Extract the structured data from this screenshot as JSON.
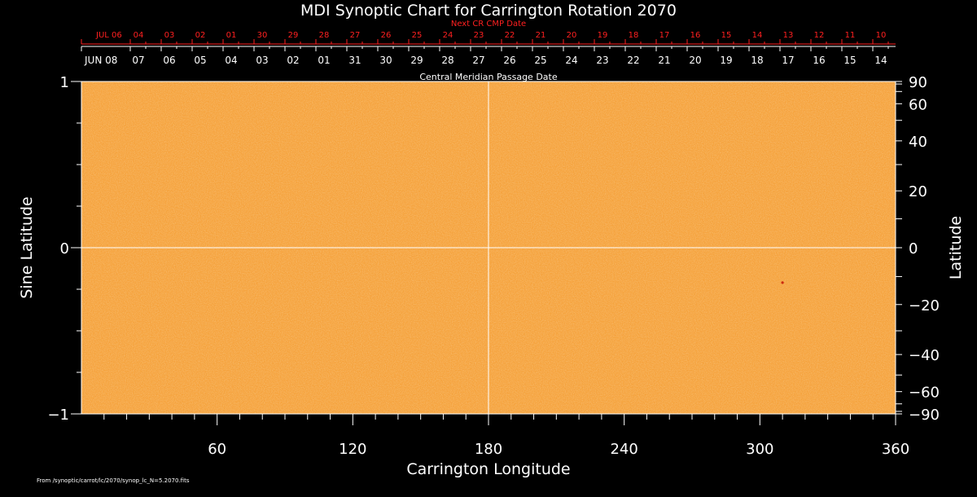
{
  "chart_data": {
    "type": "heatmap",
    "title": "MDI Synoptic Chart for Carrington Rotation 2070",
    "xlabel": "Carrington Longitude",
    "ylabel_left": "Sine Latitude",
    "ylabel_right": "Latitude",
    "xlim": [
      0,
      360
    ],
    "ylim": [
      -1,
      1
    ],
    "x_major_ticks": [
      60,
      120,
      180,
      240,
      300,
      360
    ],
    "x_minor_step": 10,
    "y_left_major_ticks": [
      -1,
      0,
      1
    ],
    "y_left_minor_step": 0.25,
    "y_right_ticks_deg": [
      90,
      60,
      40,
      20,
      0,
      -20,
      -40,
      -60,
      -90
    ],
    "top_axis_title": "Central Meridian Passage Date",
    "top_axis_labels": [
      "JUN 08",
      "07",
      "06",
      "05",
      "04",
      "03",
      "02",
      "01",
      "31",
      "30",
      "29",
      "28",
      "27",
      "26",
      "25",
      "24",
      "23",
      "22",
      "21",
      "20",
      "19",
      "18",
      "17",
      "16",
      "15",
      "14"
    ],
    "next_cr_title": "Next CR CMP Date",
    "next_cr_labels": [
      "JUL 06",
      "04",
      "03",
      "02",
      "01",
      "30",
      "29",
      "28",
      "27",
      "26",
      "25",
      "24",
      "23",
      "22",
      "21",
      "20",
      "19",
      "18",
      "17",
      "16",
      "15",
      "14",
      "13",
      "12",
      "11",
      "10"
    ],
    "crosshair": {
      "longitude": 180,
      "sine_latitude": 0
    },
    "spots": [
      {
        "longitude": 310,
        "sine_latitude": -0.21
      }
    ],
    "colors": {
      "field": "#f5a23c",
      "grid": "#ffffff",
      "next_cr": "#ff2020",
      "spot": "#cc2a10",
      "background": "#000000"
    }
  },
  "footer": {
    "source": "From /synoptic/carrot/lc/2070/synop_lc_N=5.2070.fits"
  }
}
